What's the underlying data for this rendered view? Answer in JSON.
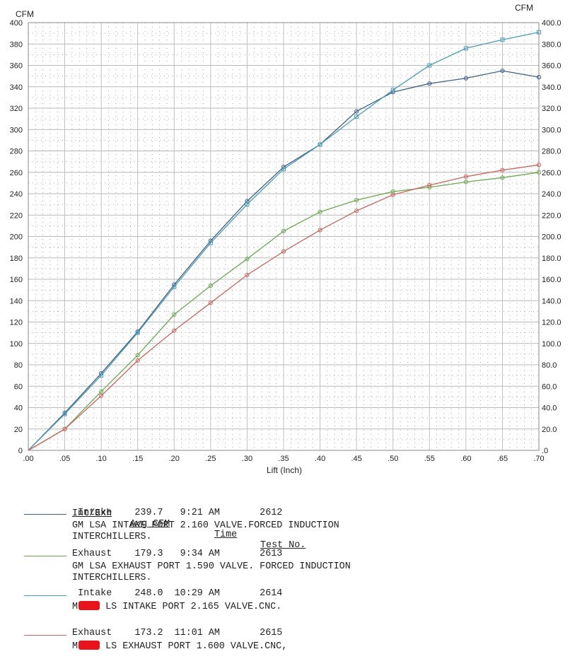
{
  "chart_data": {
    "type": "line",
    "xlabel": "Lift (Inch)",
    "ylabel_left": "CFM",
    "ylabel_right": "CFM",
    "xlim": [
      0,
      0.7
    ],
    "ylim": [
      0,
      400
    ],
    "x_ticks": [
      ".00",
      ".05",
      ".10",
      ".15",
      ".20",
      ".25",
      ".30",
      ".35",
      ".40",
      ".45",
      ".50",
      ".55",
      ".60",
      ".65",
      ".70"
    ],
    "y_left_ticks": [
      "0",
      "20",
      "40",
      "60",
      "80",
      "100",
      "120",
      "140",
      "160",
      "180",
      "200",
      "220",
      "240",
      "260",
      "280",
      "300",
      "320",
      "340",
      "360",
      "380",
      "400"
    ],
    "y_right_ticks": [
      ".0",
      "20.0",
      "40.0",
      "60.0",
      "80.0",
      "100.0",
      "120.0",
      "140.0",
      "160.0",
      "180.0",
      "200.0",
      "220.0",
      "240.0",
      "260.0",
      "280.0",
      "300.0",
      "320.0",
      "340.0",
      "360.0",
      "380.0",
      "400.0"
    ],
    "grid": true,
    "series": [
      {
        "name": "Intake",
        "color": "#3d5f86",
        "x": [
          0,
          0.05,
          0.1,
          0.15,
          0.2,
          0.25,
          0.3,
          0.35,
          0.4,
          0.45,
          0.5,
          0.55,
          0.6,
          0.65,
          0.7
        ],
        "values": [
          0,
          35,
          72,
          111,
          155,
          196,
          233,
          265,
          286,
          317,
          335,
          343,
          348,
          355,
          349
        ]
      },
      {
        "name": "Exhaust",
        "color": "#6aa84f",
        "x": [
          0,
          0.05,
          0.1,
          0.15,
          0.2,
          0.25,
          0.3,
          0.35,
          0.4,
          0.45,
          0.5,
          0.55,
          0.6,
          0.65,
          0.7
        ],
        "values": [
          0,
          20,
          55,
          89,
          127,
          154,
          179,
          205,
          223,
          234,
          242,
          246,
          251,
          255,
          260
        ]
      },
      {
        "name": "Intake",
        "color": "#4a9bb7",
        "x": [
          0,
          0.05,
          0.1,
          0.15,
          0.2,
          0.25,
          0.3,
          0.35,
          0.4,
          0.45,
          0.5,
          0.55,
          0.6,
          0.65,
          0.7
        ],
        "values": [
          0,
          34,
          70,
          110,
          153,
          194,
          230,
          263,
          286,
          312,
          337,
          360,
          376,
          384,
          391
        ]
      },
      {
        "name": "Exhaust",
        "color": "#c9665f",
        "x": [
          0,
          0.05,
          0.1,
          0.15,
          0.2,
          0.25,
          0.3,
          0.35,
          0.4,
          0.45,
          0.5,
          0.55,
          0.6,
          0.65,
          0.7
        ],
        "values": [
          0,
          20,
          51,
          84,
          112,
          138,
          164,
          186,
          206,
          224,
          239,
          248,
          256,
          262,
          267
        ]
      }
    ]
  },
  "legend": {
    "headers": {
      "int_exh": "Int/Exh",
      "avg_cfm": "Avg CFM",
      "time": "Time",
      "test_no": "Test No."
    },
    "entries": [
      {
        "color": "#3d5f86",
        "line1": " Intake    239.7   9:21 AM       2612",
        "line2": "GM LSA INTAKE PORT 2.160 VALVE.FORCED INDUCTION",
        "line3": "INTERCHILLERS.",
        "prefix": "",
        "suffix": ""
      },
      {
        "color": "#6aa84f",
        "line1": "Exhaust    179.3   9:34 AM       2613",
        "line2": "GM LSA EXHAUST PORT 1.590 VALVE. FORCED INDUCTION",
        "line3": "INTERCHILLERS.",
        "prefix": "",
        "suffix": ""
      },
      {
        "color": "#4a9bb7",
        "line1": " Intake    248.0  10:29 AM       2614",
        "line2": "",
        "line3": "",
        "prefix": "M",
        "suffix": " LS INTAKE PORT 2.165 VALVE.CNC."
      },
      {
        "color": "#c9665f",
        "line1": "Exhaust    173.2  11:01 AM       2615",
        "line2": "",
        "line3": "",
        "prefix": "M",
        "suffix": " LS EXHAUST PORT 1.600 VALVE.CNC,"
      }
    ]
  }
}
